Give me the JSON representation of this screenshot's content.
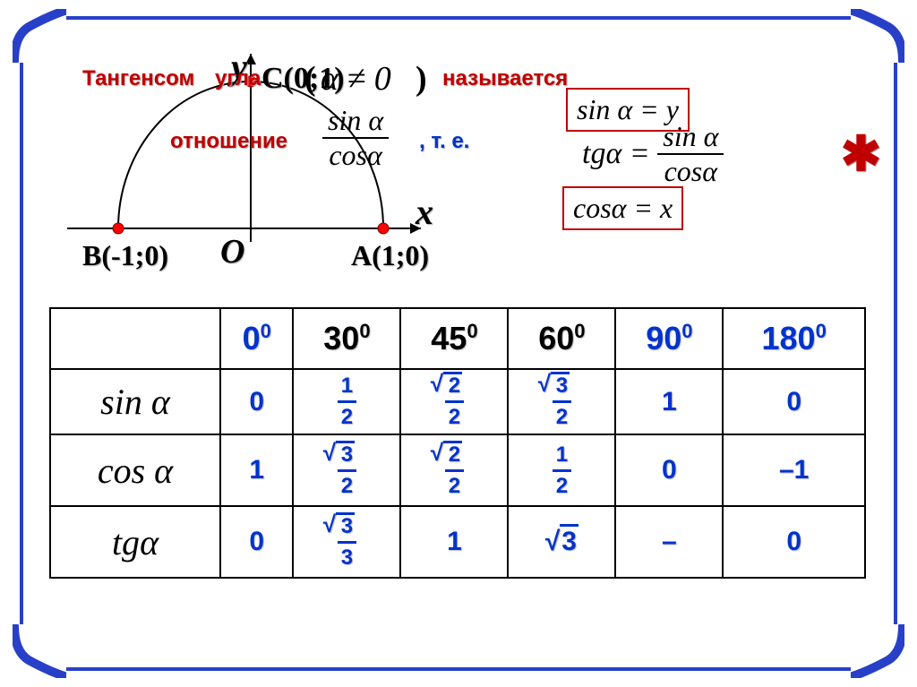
{
  "frame": {
    "border_color": "#2840c8",
    "border_width": 4
  },
  "definition": {
    "word1": "Тангенсом",
    "word2": "угла",
    "paren_open": "(",
    "condition": "α ≠ 0",
    "paren_close": ")",
    "word3": "называется",
    "word4": "отношение",
    "comma_te": ",   т. е.",
    "ratio_num": "sin α",
    "ratio_den": "cos α",
    "box_sin": "sin α = y",
    "box_cos": "cos α = x",
    "tg_lhs": "tgα =",
    "tg_num": "sin α",
    "tg_den": "cos α"
  },
  "asterisk": "✱",
  "diagram": {
    "y_axis": "y",
    "x_axis": "x",
    "origin": "O",
    "point_c": "C(0;1)",
    "point_a": "A(1;0)",
    "point_b": "B(-1;0)",
    "semicircle_color": "#000000",
    "point_color": "#ff0000"
  },
  "table": {
    "headers": [
      {
        "base": "0",
        "sup": "0",
        "color": "blue"
      },
      {
        "base": "30",
        "sup": "0",
        "color": "black"
      },
      {
        "base": "45",
        "sup": "0",
        "color": "black"
      },
      {
        "base": "60",
        "sup": "0",
        "color": "black"
      },
      {
        "base": "90",
        "sup": "0",
        "color": "blue"
      },
      {
        "base": "180",
        "sup": "0",
        "color": "blue"
      }
    ],
    "rows": [
      {
        "label": "sin α",
        "cells": [
          {
            "type": "plain",
            "value": "0"
          },
          {
            "type": "frac",
            "num": "1",
            "den": "2",
            "sqrt": false
          },
          {
            "type": "frac",
            "num": "2",
            "den": "2",
            "sqrt": true
          },
          {
            "type": "frac",
            "num": "3",
            "den": "2",
            "sqrt": true
          },
          {
            "type": "plain",
            "value": "1"
          },
          {
            "type": "plain",
            "value": "0"
          }
        ]
      },
      {
        "label": "cos α",
        "cells": [
          {
            "type": "plain",
            "value": "1"
          },
          {
            "type": "frac",
            "num": "3",
            "den": "2",
            "sqrt": true
          },
          {
            "type": "frac",
            "num": "2",
            "den": "2",
            "sqrt": true
          },
          {
            "type": "frac",
            "num": "1",
            "den": "2",
            "sqrt": false
          },
          {
            "type": "plain",
            "value": "0"
          },
          {
            "type": "plain",
            "value": "–1"
          }
        ]
      },
      {
        "label": "tgα",
        "cells": [
          {
            "type": "plain",
            "value": "0"
          },
          {
            "type": "frac",
            "num": "3",
            "den": "3",
            "sqrt": true
          },
          {
            "type": "plain",
            "value": "1"
          },
          {
            "type": "sqrt_plain",
            "value": "3"
          },
          {
            "type": "plain",
            "value": "–"
          },
          {
            "type": "plain",
            "value": "0"
          }
        ]
      }
    ]
  },
  "styling": {
    "value_color": "#0033cc",
    "shadow_color": "#bbbbbb",
    "red_color": "#c00000",
    "border_color": "#000000",
    "font_serif": "Times New Roman",
    "font_sans": "Arial"
  }
}
